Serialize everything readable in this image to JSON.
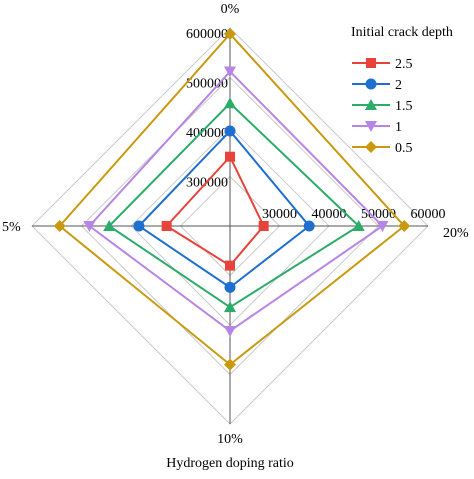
{
  "chart_data": {
    "type": "radar",
    "categories": [
      "0%",
      "20%",
      "10%",
      "5%"
    ],
    "xlabel": "Hydrogen doping ratio",
    "legend_title": "Initial crack depth",
    "legend_position": "top-right",
    "grid": true,
    "axis_tick_labels": [
      {
        "axis": "0%",
        "ticks": [
          "600000",
          "500000",
          "400000",
          "300000"
        ]
      },
      {
        "axis": "20%",
        "ticks": [
          "30000",
          "40000",
          "50000",
          "60000"
        ]
      }
    ],
    "series": [
      {
        "name": "2.5",
        "color": "#e8433a",
        "marker": "square",
        "values": [
          0.35,
          0.17,
          0.2,
          0.32
        ]
      },
      {
        "name": "2",
        "color": "#1e6fd0",
        "marker": "circle",
        "values": [
          0.48,
          0.4,
          0.31,
          0.46
        ]
      },
      {
        "name": "1.5",
        "color": "#2cac69",
        "marker": "triangle-up",
        "values": [
          0.62,
          0.65,
          0.41,
          0.61
        ]
      },
      {
        "name": "1",
        "color": "#b884e6",
        "marker": "triangle-down",
        "values": [
          0.78,
          0.77,
          0.53,
          0.71
        ]
      },
      {
        "name": "0.5",
        "color": "#c99a10",
        "marker": "diamond",
        "values": [
          0.97,
          0.88,
          0.7,
          0.86
        ]
      }
    ],
    "grid_levels": [
      0.25,
      0.5,
      0.75,
      1.0
    ],
    "grid_color": "#cccccc",
    "axis_color": "#555555"
  }
}
